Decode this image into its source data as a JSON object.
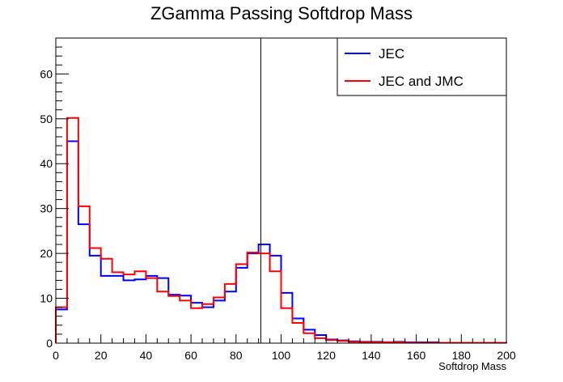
{
  "chart_data": {
    "type": "line",
    "subtype": "step-histogram",
    "title": "ZGamma Passing Softdrop Mass",
    "xlabel": "Softdrop Mass",
    "ylabel": "",
    "xlim": [
      0,
      200
    ],
    "ylim": [
      0,
      68
    ],
    "xticks": [
      0,
      20,
      40,
      60,
      80,
      100,
      120,
      140,
      160,
      180,
      200
    ],
    "yticks": [
      0,
      10,
      20,
      30,
      40,
      50,
      60
    ],
    "bin_width": 5,
    "grid": false,
    "legend_position": "top-right",
    "vertical_line_x": 91,
    "series": [
      {
        "name": "JEC",
        "color": "#0000ff",
        "values": [
          7.5,
          45,
          26.5,
          19.5,
          15,
          15,
          14,
          14.2,
          15,
          14.5,
          10.8,
          10.6,
          9,
          8,
          9.5,
          11.5,
          16.8,
          20,
          22,
          19.5,
          11.2,
          5.5,
          3,
          1.8,
          0.8,
          0.6,
          0.4,
          0.3,
          0.3,
          0.2,
          0.3,
          0.2,
          0.2,
          0.2,
          0.1,
          0.1,
          0.1,
          0.1,
          0.1,
          0.1
        ]
      },
      {
        "name": "JEC and JMC",
        "color": "#ff0000",
        "values": [
          8,
          50.2,
          30.5,
          21.2,
          18.8,
          15.8,
          15.3,
          16,
          14.5,
          11.5,
          10.5,
          9.5,
          7.8,
          8.7,
          10.2,
          13.2,
          17.6,
          20.2,
          20,
          16,
          7.8,
          4.5,
          2.2,
          1.1,
          0.7,
          0.5,
          0.3,
          0.3,
          0.2,
          0.2,
          0.2,
          0.1,
          0.1,
          0.1,
          0.1,
          0.1,
          0.1,
          0.1,
          0.1,
          0.1
        ]
      }
    ]
  }
}
